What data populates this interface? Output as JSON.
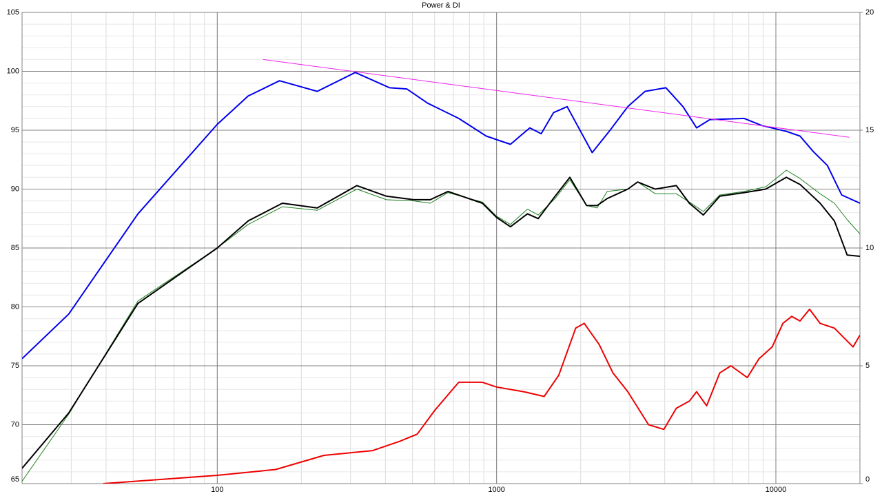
{
  "chart_data": {
    "type": "line",
    "title": "Power & DI",
    "xlog": true,
    "xlim": [
      20,
      20000
    ],
    "xticks": [
      100,
      1000,
      10000
    ],
    "ylim": [
      65,
      105
    ],
    "yticks": [
      65,
      70,
      75,
      80,
      85,
      90,
      95,
      100,
      105
    ],
    "y2lim": [
      0,
      20
    ],
    "y2ticks": [
      0,
      5,
      10,
      15,
      20
    ],
    "grid": true,
    "minor_grid": true,
    "series": [
      {
        "color": "#208020",
        "width": 1,
        "x": [
          20,
          29.4,
          52,
          100,
          129,
          171,
          228,
          316,
          403,
          505,
          579,
          670,
          890,
          1000,
          1121,
          1290,
          1410,
          1620,
          1830,
          2100,
          2290,
          2490,
          2950,
          3200,
          3700,
          4400,
          4900,
          5500,
          6300,
          7700,
          9200,
          10900,
          12200,
          14400,
          16200,
          18000,
          20000
        ],
        "values": [
          65.2,
          70.9,
          80.5,
          85.0,
          87.0,
          88.5,
          88.2,
          90.0,
          89.1,
          89.0,
          88.8,
          89.7,
          88.9,
          87.7,
          87.0,
          88.3,
          87.8,
          89.2,
          90.8,
          88.6,
          88.4,
          89.8,
          90.0,
          90.6,
          89.6,
          89.6,
          88.9,
          88.1,
          89.5,
          89.8,
          90.2,
          91.6,
          90.9,
          89.6,
          88.8,
          87.4,
          86.2
        ]
      },
      {
        "color": "#000000",
        "width": 2,
        "x": [
          20,
          29.4,
          52,
          100,
          129,
          171,
          228,
          316,
          403,
          505,
          579,
          670,
          890,
          1000,
          1121,
          1290,
          1410,
          1620,
          1830,
          2100,
          2290,
          2490,
          2950,
          3200,
          3700,
          4400,
          4900,
          5500,
          6300,
          7700,
          9200,
          10900,
          12200,
          14400,
          16200,
          18000,
          20000
        ],
        "values": [
          66.3,
          71.0,
          80.3,
          85.0,
          87.3,
          88.8,
          88.4,
          90.3,
          89.4,
          89.1,
          89.1,
          89.8,
          88.8,
          87.6,
          86.8,
          87.9,
          87.5,
          89.4,
          91.0,
          88.6,
          88.6,
          89.2,
          90.0,
          90.6,
          90.0,
          90.3,
          88.8,
          87.8,
          89.4,
          89.7,
          90.0,
          91.0,
          90.4,
          88.8,
          87.3,
          84.4,
          84.3
        ]
      },
      {
        "color": "#0000ee",
        "width": 2,
        "x": [
          20,
          29.4,
          52,
          100,
          129,
          167,
          228,
          312,
          414,
          477,
          566,
          732,
          918,
          1121,
          1315,
          1445,
          1600,
          1790,
          2200,
          2550,
          2950,
          3400,
          4040,
          4650,
          5200,
          5800,
          7700,
          8900,
          10900,
          12200,
          13600,
          15300,
          17200,
          20000
        ],
        "values": [
          75.6,
          79.4,
          87.9,
          95.5,
          97.9,
          99.2,
          98.3,
          99.9,
          98.6,
          98.5,
          97.3,
          96.0,
          94.5,
          93.8,
          95.2,
          94.7,
          96.5,
          97.0,
          93.1,
          95.0,
          97.0,
          98.3,
          98.6,
          97.0,
          95.2,
          95.9,
          96.0,
          95.4,
          94.9,
          94.5,
          93.2,
          92.0,
          89.5,
          88.8
        ]
      },
      {
        "color": "#ee0000",
        "width": 2,
        "axis": "y2",
        "x": [
          39,
          100,
          162,
          241,
          360,
          451,
          520,
          600,
          732,
          890,
          1000,
          1250,
          1480,
          1670,
          1920,
          2060,
          2330,
          2610,
          2950,
          3500,
          3970,
          4400,
          4900,
          5200,
          5650,
          6300,
          6900,
          7900,
          8700,
          9700,
          10600,
          11400,
          12200,
          13200,
          14400,
          16200,
          18900,
          20000
        ],
        "values": [
          0,
          0.35,
          0.6,
          1.2,
          1.4,
          1.8,
          2.1,
          3.1,
          4.3,
          4.3,
          4.1,
          3.9,
          3.7,
          4.6,
          6.6,
          6.8,
          5.9,
          4.7,
          3.9,
          2.5,
          2.3,
          3.2,
          3.5,
          3.9,
          3.3,
          4.7,
          5.0,
          4.5,
          5.3,
          5.8,
          6.8,
          7.1,
          6.9,
          7.4,
          6.8,
          6.6,
          5.8,
          6.3
        ]
      },
      {
        "color": "#ee22ee",
        "width": 1,
        "x": [
          146,
          18300
        ],
        "values": [
          101.0,
          94.4
        ]
      }
    ]
  }
}
